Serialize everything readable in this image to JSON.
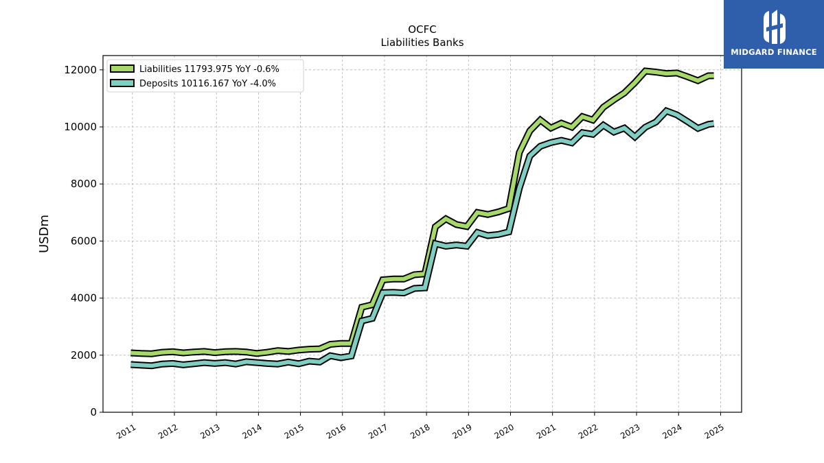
{
  "chart_data": {
    "type": "line",
    "title": "OCFC",
    "subtitle": "Liabilities Banks",
    "ylabel": "USDm",
    "xlabel": "",
    "xlim": [
      2010.3,
      2025.5
    ],
    "ylim": [
      0,
      12500
    ],
    "yticks": [
      0,
      2000,
      4000,
      6000,
      8000,
      10000,
      12000
    ],
    "xticks": [
      2011,
      2012,
      2013,
      2014,
      2015,
      2016,
      2017,
      2018,
      2019,
      2020,
      2021,
      2022,
      2023,
      2024,
      2025
    ],
    "grid": true,
    "legend_position": "top-left",
    "series": [
      {
        "name": "Liabilities  11793.975 YoY -0.6%",
        "color": "#a6d96a",
        "x": [
          2010.96,
          2011.21,
          2011.46,
          2011.71,
          2011.96,
          2012.21,
          2012.46,
          2012.71,
          2012.96,
          2013.21,
          2013.46,
          2013.71,
          2013.96,
          2014.21,
          2014.46,
          2014.71,
          2014.96,
          2015.21,
          2015.46,
          2015.71,
          2015.96,
          2016.21,
          2016.46,
          2016.71,
          2016.96,
          2017.21,
          2017.46,
          2017.71,
          2017.96,
          2018.21,
          2018.46,
          2018.71,
          2018.96,
          2019.21,
          2019.46,
          2019.71,
          2019.96,
          2020.21,
          2020.46,
          2020.71,
          2020.96,
          2021.21,
          2021.46,
          2021.71,
          2021.96,
          2022.21,
          2022.46,
          2022.71,
          2022.96,
          2023.21,
          2023.46,
          2023.71,
          2023.96,
          2024.21,
          2024.46,
          2024.71,
          2024.84
        ],
        "y": [
          2080,
          2060,
          2050,
          2100,
          2120,
          2080,
          2110,
          2130,
          2090,
          2120,
          2130,
          2110,
          2060,
          2100,
          2160,
          2130,
          2180,
          2210,
          2220,
          2380,
          2410,
          2410,
          3680,
          3770,
          4640,
          4670,
          4670,
          4820,
          4850,
          6500,
          6780,
          6580,
          6510,
          7000,
          6930,
          7020,
          7140,
          9100,
          9860,
          10240,
          9960,
          10130,
          9990,
          10360,
          10240,
          10690,
          10950,
          11190,
          11550,
          11960,
          11920,
          11870,
          11890,
          11760,
          11620,
          11790,
          11794
        ]
      },
      {
        "name": "Deposits  10116.167 YoY -4.0%",
        "color": "#80cdc1",
        "x": [
          2010.96,
          2011.21,
          2011.46,
          2011.71,
          2011.96,
          2012.21,
          2012.46,
          2012.71,
          2012.96,
          2013.21,
          2013.46,
          2013.71,
          2013.96,
          2014.21,
          2014.46,
          2014.71,
          2014.96,
          2015.21,
          2015.46,
          2015.71,
          2015.96,
          2016.21,
          2016.46,
          2016.71,
          2016.96,
          2017.21,
          2017.46,
          2017.71,
          2017.96,
          2018.21,
          2018.46,
          2018.71,
          2018.96,
          2019.21,
          2019.46,
          2019.71,
          2019.96,
          2020.21,
          2020.46,
          2020.71,
          2020.96,
          2021.21,
          2021.46,
          2021.71,
          2021.96,
          2022.21,
          2022.46,
          2022.71,
          2022.96,
          2023.21,
          2023.46,
          2023.71,
          2023.96,
          2024.21,
          2024.46,
          2024.71,
          2024.84
        ],
        "y": [
          1670,
          1650,
          1630,
          1690,
          1710,
          1660,
          1700,
          1740,
          1710,
          1740,
          1690,
          1770,
          1740,
          1710,
          1690,
          1760,
          1700,
          1790,
          1760,
          1980,
          1910,
          1970,
          3200,
          3290,
          4190,
          4200,
          4180,
          4340,
          4360,
          5910,
          5820,
          5860,
          5820,
          6300,
          6190,
          6230,
          6320,
          7850,
          8980,
          9320,
          9450,
          9530,
          9440,
          9800,
          9740,
          10060,
          9820,
          9960,
          9650,
          9990,
          10170,
          10560,
          10420,
          10190,
          9950,
          10090,
          10116
        ]
      }
    ]
  },
  "logo": {
    "text": "MIDGARD FINANCE",
    "bg_color": "#2f5eab"
  }
}
